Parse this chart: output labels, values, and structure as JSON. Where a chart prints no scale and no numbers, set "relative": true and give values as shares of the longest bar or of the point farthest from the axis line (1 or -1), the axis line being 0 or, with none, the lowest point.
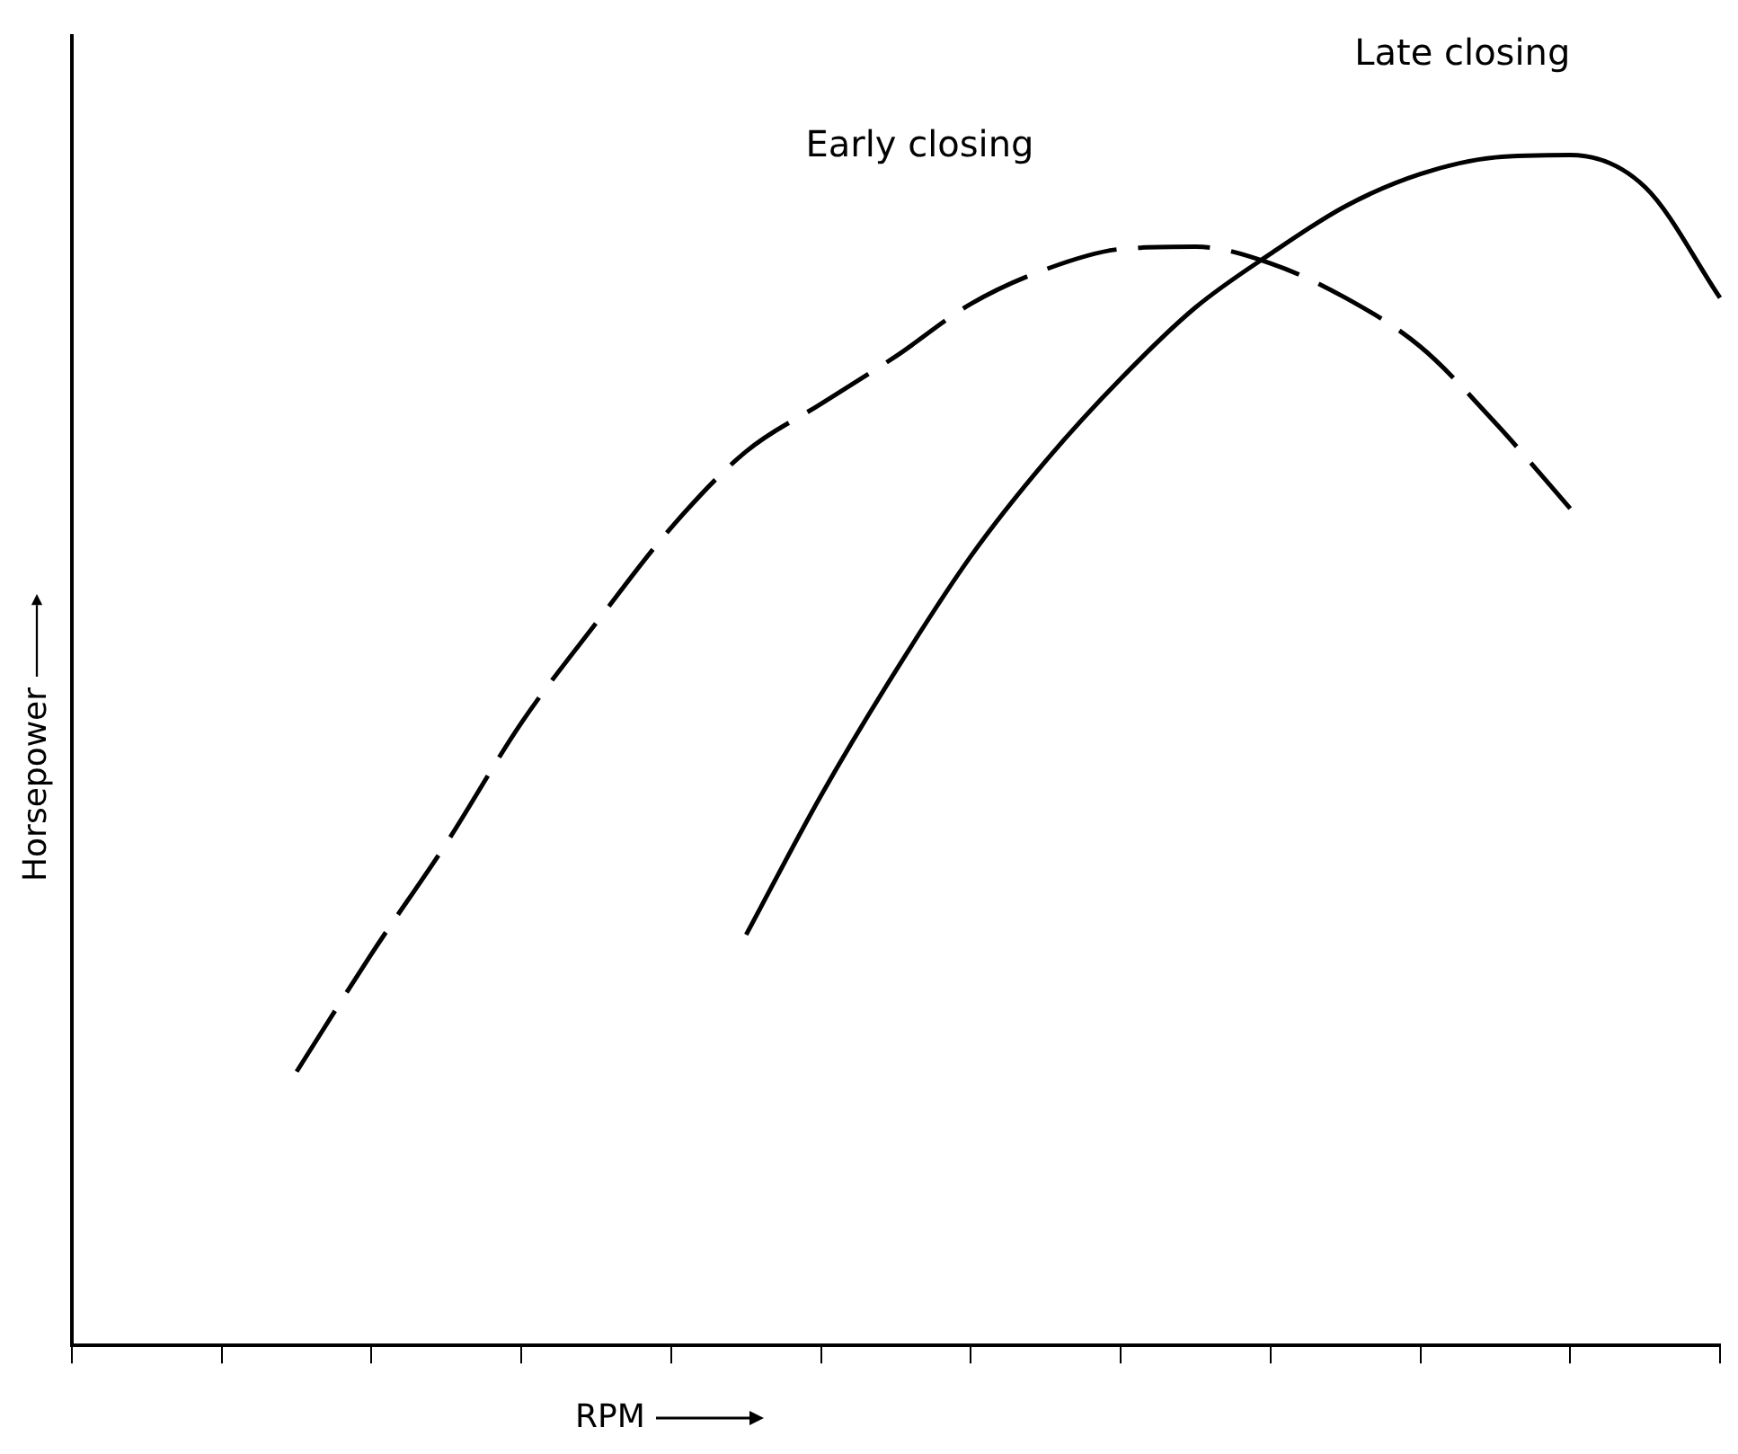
{
  "chart_data": {
    "type": "line",
    "relative": true,
    "xlabel": "RPM",
    "ylabel": "Horsepower",
    "grid": false,
    "legend": false,
    "marker": "none",
    "categories": [
      null,
      null,
      null,
      null,
      null,
      null,
      null,
      null,
      null,
      null,
      null,
      null,
      null,
      null,
      null,
      null,
      null,
      null,
      null,
      null,
      null,
      null,
      null
    ],
    "series": [
      {
        "name": "Early closing",
        "color": "#000000",
        "line_style": "dashed",
        "values": [
          null,
          null,
          null,
          0.23,
          0.329,
          0.422,
          0.523,
          0.607,
          0.687,
          0.751,
          0.791,
          0.831,
          0.875,
          0.904,
          0.921,
          0.923,
          0.909,
          0.88,
          0.839,
          0.775,
          0.703,
          null,
          null
        ]
      },
      {
        "name": "Late closing",
        "color": "#000000",
        "line_style": "solid",
        "values": [
          null,
          null,
          null,
          null,
          null,
          null,
          null,
          null,
          null,
          0.345,
          0.462,
          0.567,
          0.663,
          0.743,
          0.812,
          0.872,
          0.917,
          0.957,
          0.984,
          0.998,
          1,
          0.973,
          0.88
        ]
      }
    ]
  }
}
